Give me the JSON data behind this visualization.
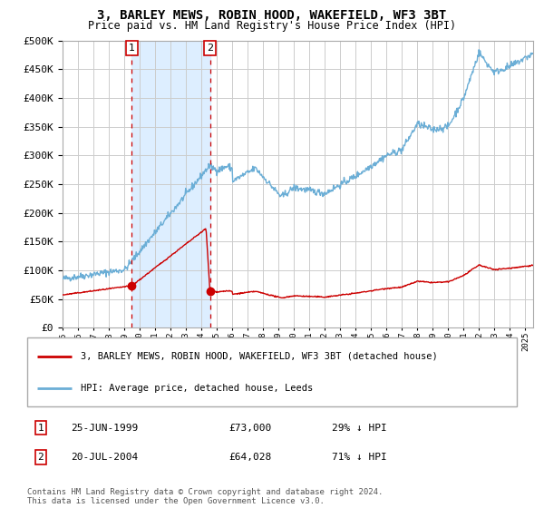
{
  "title": "3, BARLEY MEWS, ROBIN HOOD, WAKEFIELD, WF3 3BT",
  "subtitle": "Price paid vs. HM Land Registry's House Price Index (HPI)",
  "legend_line1": "3, BARLEY MEWS, ROBIN HOOD, WAKEFIELD, WF3 3BT (detached house)",
  "legend_line2": "HPI: Average price, detached house, Leeds",
  "sale1_date_label": "25-JUN-1999",
  "sale1_price_label": "£73,000",
  "sale1_hpi_label": "29% ↓ HPI",
  "sale2_date_label": "20-JUL-2004",
  "sale2_price_label": "£64,028",
  "sale2_hpi_label": "71% ↓ HPI",
  "footnote": "Contains HM Land Registry data © Crown copyright and database right 2024.\nThis data is licensed under the Open Government Licence v3.0.",
  "sale1_year": 1999.49,
  "sale1_price": 73000,
  "sale2_year": 2004.55,
  "sale2_price": 64028,
  "hpi_color": "#6baed6",
  "price_color": "#cc0000",
  "sale_marker_color": "#cc0000",
  "shading_color": "#ddeeff",
  "dashed_line_color": "#cc0000",
  "grid_color": "#cccccc",
  "background_color": "#ffffff",
  "ylim": [
    0,
    500000
  ],
  "xlim_start": 1995.0,
  "xlim_end": 2025.5
}
